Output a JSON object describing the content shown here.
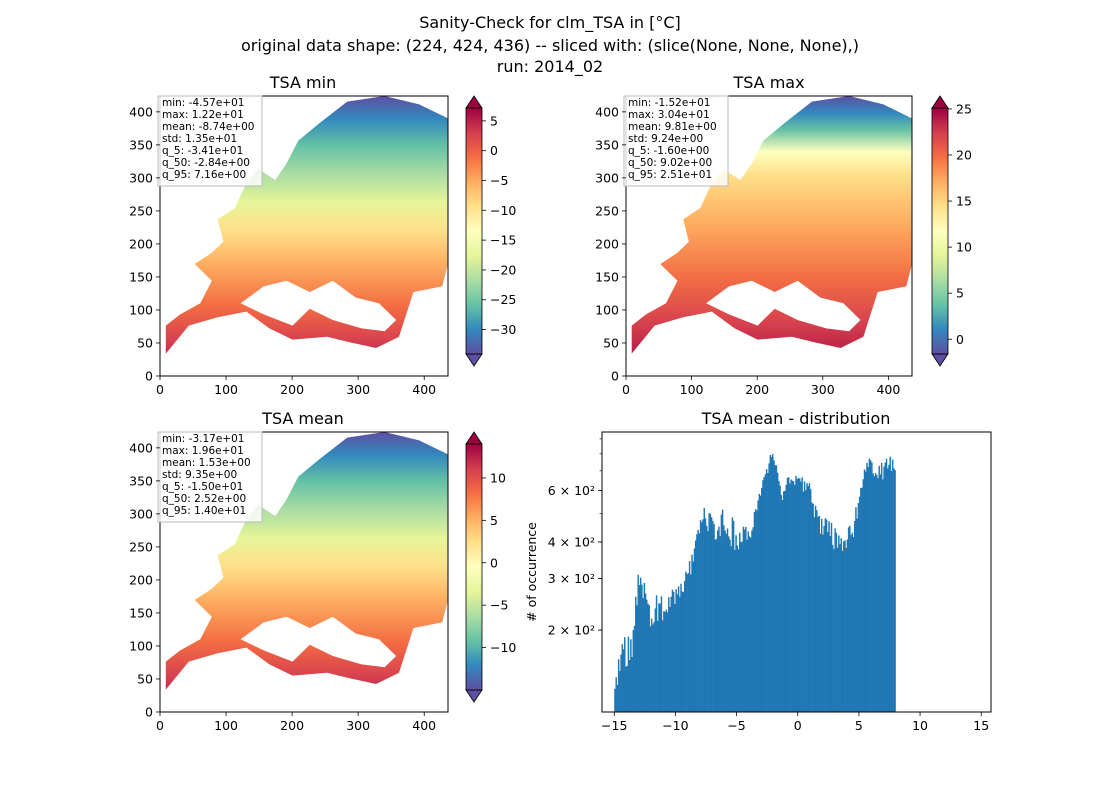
{
  "figure": {
    "suptitle_lines": [
      "Sanity-Check for clm_TSA in [°C]",
      "original data shape: (224, 424, 436) -- sliced with: (slice(None, None, None),)",
      "run: 2014_02"
    ]
  },
  "maps": [
    {
      "title": "TSA min",
      "stats": [
        "min: -4.57e+01",
        "max: 1.22e+01",
        "mean: -8.74e+00",
        "std: 1.35e+01",
        "q_5: -3.41e+01",
        "q_50: -2.84e+00",
        "q_95: 7.16e+00"
      ],
      "colorbar_ticks": [
        "5",
        "0",
        "−5",
        "−10",
        "−15",
        "−20",
        "−25",
        "−30"
      ],
      "colorbar_tick_values": [
        5,
        0,
        -5,
        -10,
        -15,
        -20,
        -25,
        -30
      ],
      "vmin": -34.1,
      "vmax": 7.16
    },
    {
      "title": "TSA max",
      "stats": [
        "min: -1.52e+01",
        "max: 3.04e+01",
        "mean: 9.81e+00",
        "std: 9.24e+00",
        "q_5: -1.60e+00",
        "q_50: 9.02e+00",
        "q_95: 2.51e+01"
      ],
      "colorbar_ticks": [
        "25",
        "20",
        "15",
        "10",
        "5",
        "0"
      ],
      "colorbar_tick_values": [
        25,
        20,
        15,
        10,
        5,
        0
      ],
      "vmin": -1.6,
      "vmax": 25.1
    },
    {
      "title": "TSA mean",
      "stats": [
        "min: -3.17e+01",
        "max: 1.96e+01",
        "mean: 1.53e+00",
        "std: 9.35e+00",
        "q_5: -1.50e+01",
        "q_50: 2.52e+00",
        "q_95: 1.40e+01"
      ],
      "colorbar_ticks": [
        "10",
        "5",
        "0",
        "−5",
        "−10"
      ],
      "colorbar_tick_values": [
        10,
        5,
        0,
        -5,
        -10
      ],
      "vmin": -15.0,
      "vmax": 14.0
    }
  ],
  "map_axes": {
    "xlim": [
      0,
      436
    ],
    "ylim": [
      0,
      424
    ],
    "xticks": [
      "0",
      "100",
      "200",
      "300",
      "400"
    ],
    "xtick_values": [
      0,
      100,
      200,
      300,
      400
    ],
    "yticks": [
      "0",
      "50",
      "100",
      "150",
      "200",
      "250",
      "300",
      "350",
      "400"
    ],
    "ytick_values": [
      0,
      50,
      100,
      150,
      200,
      250,
      300,
      350,
      400
    ]
  },
  "colors": {
    "spectral_r": [
      "#5e4fa2",
      "#3288bd",
      "#66c2a5",
      "#abdda4",
      "#e6f598",
      "#ffffbf",
      "#fee08b",
      "#fdae61",
      "#f46d43",
      "#d53e4f",
      "#9e0142"
    ],
    "hist_bar": "#1f77b4"
  },
  "chart_data": {
    "type": "bar",
    "title": "TSA mean - distribution",
    "ylabel": "# of occurrence",
    "yscale": "log",
    "xlim": [
      -16,
      15.8
    ],
    "ylim": [
      105,
      950
    ],
    "xticks": [
      "−15",
      "−10",
      "−5",
      "0",
      "5",
      "10",
      "15"
    ],
    "xtick_values": [
      -15,
      -10,
      -5,
      0,
      5,
      10,
      15
    ],
    "yticks": [
      "2 × 10²",
      "3 × 10²",
      "4 × 10²",
      "6 × 10²"
    ],
    "ytick_values": [
      200,
      300,
      400,
      600
    ],
    "bin_start": -15.0,
    "bin_width": 0.1,
    "values": [
      126,
      138,
      130,
      159,
      145,
      165,
      179,
      172,
      189,
      150,
      151,
      190,
      158,
      186,
      162,
      200,
      207,
      260,
      243,
      309,
      285,
      302,
      286,
      257,
      290,
      267,
      254,
      246,
      243,
      206,
      219,
      209,
      213,
      237,
      263,
      215,
      247,
      246,
      261,
      216,
      232,
      231,
      235,
      230,
      259,
      240,
      260,
      275,
      270,
      246,
      276,
      265,
      282,
      260,
      288,
      271,
      270,
      294,
      317,
      311,
      313,
      344,
      310,
      362,
      343,
      380,
      405,
      425,
      440,
      428,
      475,
      467,
      478,
      522,
      482,
      454,
      436,
      502,
      499,
      486,
      472,
      461,
      407,
      410,
      438,
      451,
      419,
      496,
      516,
      456,
      438,
      427,
      445,
      418,
      408,
      387,
      485,
      472,
      376,
      422,
      389,
      378,
      430,
      400,
      401,
      451,
      441,
      450,
      407,
      434,
      418,
      414,
      438,
      449,
      506,
      518,
      512,
      554,
      584,
      576,
      612,
      650,
      667,
      681,
      709,
      688,
      742,
      793,
      781,
      798,
      760,
      732,
      731,
      689,
      646,
      623,
      579,
      557,
      596,
      598,
      627,
      662,
      666,
      634,
      654,
      648,
      645,
      626,
      673,
      656,
      663,
      659,
      643,
      665,
      594,
      644,
      601,
      635,
      621,
      635,
      606,
      546,
      540,
      486,
      532,
      514,
      488,
      491,
      427,
      480,
      424,
      454,
      482,
      477,
      432,
      471,
      419,
      465,
      391,
      378,
      445,
      430,
      383,
      421,
      393,
      412,
      373,
      402,
      405,
      382,
      408,
      449,
      454,
      422,
      430,
      416,
      472,
      526,
      481,
      543,
      571,
      612,
      613,
      655,
      708,
      696,
      745,
      722,
      771,
      760,
      748,
      685,
      670,
      688,
      678,
      661,
      728,
      681,
      746,
      654,
      724,
      747,
      770,
      713,
      734,
      782,
      699,
      765,
      714,
      704
    ]
  }
}
